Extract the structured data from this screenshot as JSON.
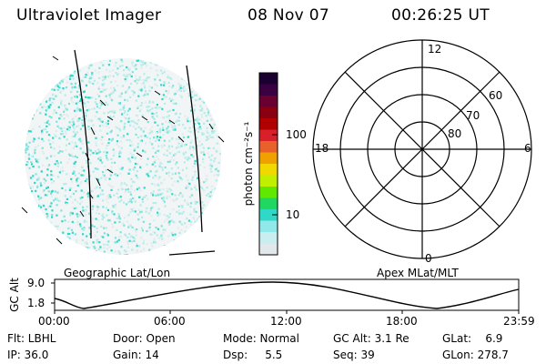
{
  "header": {
    "instrument": "Ultraviolet Imager",
    "date": "08 Nov 07",
    "time": "00:26:25 UT"
  },
  "image_panel": {
    "caption": "Geographic Lat/Lon",
    "colors": {
      "emission": "#2cd8c8",
      "background": "#e8eef0"
    }
  },
  "colorbar": {
    "label": "photon cm⁻²s⁻¹",
    "ticks": [
      "100",
      "10"
    ],
    "colors": [
      "#1a0030",
      "#3a0040",
      "#6a0030",
      "#8a0010",
      "#b00000",
      "#d8202a",
      "#e8602a",
      "#f0a000",
      "#f0d800",
      "#c0f000",
      "#60e800",
      "#20d860",
      "#30d8c8",
      "#90e8e8",
      "#c8eef0",
      "#e0e8ec"
    ]
  },
  "polar_plot": {
    "caption": "Apex MLat/MLT",
    "mlt_labels": {
      "top": "12",
      "left": "18",
      "right": "6",
      "bottom": "0"
    },
    "lat_labels": [
      "60",
      "70",
      "80"
    ]
  },
  "altitude_plot": {
    "ylabel": "GC Alt",
    "yticks": [
      "9.0",
      "1.8"
    ],
    "xticks": [
      "00:00",
      "06:00",
      "12:00",
      "18:00",
      "23:59"
    ]
  },
  "info": {
    "flt": "Flt: LBHL",
    "ip": "IP: 36.0",
    "door": "Door: Open",
    "gain": "Gain: 14",
    "mode": "Mode: Normal",
    "dsp": "Dsp:     5.5",
    "gcalt": "GC Alt: 3.1 Re",
    "seq": "Seq: 39",
    "glat": "GLat:    6.9",
    "glon": "GLon: 278.7"
  }
}
